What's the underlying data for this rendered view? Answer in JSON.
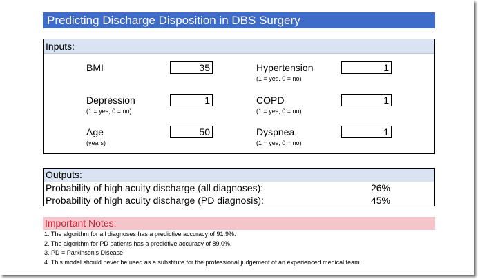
{
  "title": "Predicting Discharge Disposition in DBS Surgery",
  "inputs": {
    "header": "Inputs:",
    "bmi": {
      "label": "BMI",
      "value": "35",
      "note": ""
    },
    "hypertension": {
      "label": "Hypertension",
      "value": "1",
      "note": "(1 = yes, 0 = no)"
    },
    "depression": {
      "label": "Depression",
      "value": "1",
      "note": "(1 = yes, 0 = no)"
    },
    "copd": {
      "label": "COPD",
      "value": "1",
      "note": "(1 = yes, 0 = no)"
    },
    "age": {
      "label": "Age",
      "value": "50",
      "note": "(years)"
    },
    "dyspnea": {
      "label": "Dyspnea",
      "value": "1",
      "note": "(1 = yes, 0 = no)"
    }
  },
  "outputs": {
    "header": "Outputs:",
    "rows": [
      {
        "label": "Probability of high acuity discharge (all diagnoses):",
        "value": "26%"
      },
      {
        "label": "Probability of high acuity discharge (PD diagnosis):",
        "value": "45%"
      }
    ]
  },
  "notes": {
    "header": "Important Notes:",
    "items": [
      "1. The algorithm for all diagnoses has a predictive accuracy of 91.9%.",
      "2. The algorithm for PD patients has a predictive accuracy of 89.0%.",
      "3. PD = Parkinson's Disease",
      "4. This model should never be used as a substitute for the professional judgement of an experienced medical team."
    ]
  },
  "colors": {
    "title_bg": "#3f6cc9",
    "section_bg": "#d9e3f2",
    "notes_bg": "#f4c6cc",
    "notes_text": "#c0283a"
  }
}
